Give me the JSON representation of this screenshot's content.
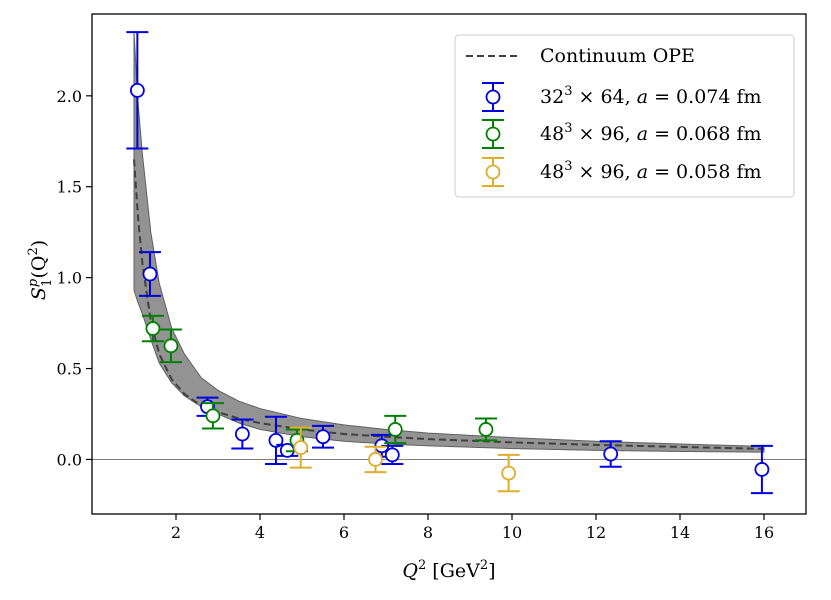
{
  "chart_data": {
    "type": "scatter",
    "xlabel": "Q² [GeV²]",
    "ylabel": "S₁ᵖ(Q²)",
    "xlim": [
      0,
      17
    ],
    "ylim": [
      -0.3,
      2.45
    ],
    "xticks": [
      2,
      4,
      6,
      8,
      10,
      12,
      14,
      16
    ],
    "yticks": [
      0.0,
      0.5,
      1.0,
      1.5,
      2.0
    ],
    "ytick_labels": [
      "0.0",
      "0.5",
      "1.0",
      "1.5",
      "2.0"
    ],
    "grid": false,
    "zero_line": true,
    "legend_position": "top-right",
    "band": {
      "name": "Continuum OPE",
      "color": "#808080",
      "x": [
        1.0,
        1.1,
        1.2,
        1.4,
        1.6,
        1.9,
        2.2,
        2.6,
        3.0,
        3.5,
        4.0,
        5.0,
        6.0,
        7.0,
        8.0,
        10.0,
        12.0,
        14.0,
        16.0
      ],
      "central": [
        1.65,
        1.32,
        1.08,
        0.76,
        0.58,
        0.44,
        0.36,
        0.295,
        0.26,
        0.225,
        0.2,
        0.165,
        0.14,
        0.125,
        0.112,
        0.094,
        0.08,
        0.069,
        0.058
      ],
      "upper": [
        2.35,
        1.95,
        1.68,
        1.25,
        0.97,
        0.72,
        0.58,
        0.45,
        0.38,
        0.32,
        0.28,
        0.225,
        0.19,
        0.165,
        0.145,
        0.12,
        0.1,
        0.085,
        0.072
      ],
      "lower": [
        0.93,
        0.86,
        0.8,
        0.66,
        0.53,
        0.42,
        0.35,
        0.29,
        0.25,
        0.2,
        0.165,
        0.125,
        0.1,
        0.085,
        0.075,
        0.06,
        0.05,
        0.044,
        0.04
      ]
    },
    "series": [
      {
        "name": "32³ × 64, a = 0.074 fm",
        "color": "#0000e0",
        "points": [
          {
            "x": 1.08,
            "y": 2.03,
            "err": 0.32
          },
          {
            "x": 1.38,
            "y": 1.02,
            "err": 0.12
          },
          {
            "x": 2.75,
            "y": 0.29,
            "err": 0.05
          },
          {
            "x": 3.58,
            "y": 0.14,
            "err": 0.08
          },
          {
            "x": 4.38,
            "y": 0.105,
            "err": 0.13
          },
          {
            "x": 4.65,
            "y": 0.05,
            "err": 0.03
          },
          {
            "x": 5.5,
            "y": 0.125,
            "err": 0.06
          },
          {
            "x": 6.9,
            "y": 0.075,
            "err": 0.06
          },
          {
            "x": 7.15,
            "y": 0.025,
            "err": 0.05
          },
          {
            "x": 12.35,
            "y": 0.03,
            "err": 0.07
          },
          {
            "x": 15.95,
            "y": -0.055,
            "err": 0.13
          }
        ]
      },
      {
        "name": "48³ × 96, a = 0.068 fm",
        "color": "#008000",
        "points": [
          {
            "x": 1.45,
            "y": 0.72,
            "err": 0.07
          },
          {
            "x": 1.88,
            "y": 0.625,
            "err": 0.09
          },
          {
            "x": 2.88,
            "y": 0.24,
            "err": 0.07
          },
          {
            "x": 4.88,
            "y": 0.105,
            "err": 0.06
          },
          {
            "x": 7.22,
            "y": 0.165,
            "err": 0.075
          },
          {
            "x": 9.38,
            "y": 0.165,
            "err": 0.06
          }
        ]
      },
      {
        "name": "48³ × 96, a = 0.058 fm",
        "color": "#e0ac2c",
        "points": [
          {
            "x": 4.97,
            "y": 0.065,
            "err": 0.11
          },
          {
            "x": 6.75,
            "y": 0.0,
            "err": 0.07
          },
          {
            "x": 9.92,
            "y": -0.075,
            "err": 0.1
          }
        ]
      }
    ]
  },
  "legend": {
    "items": [
      {
        "key": "ope",
        "latex_plain": "Continuum OPE"
      },
      {
        "key": "s0",
        "base": "32",
        "sup": "3",
        "tail": " × 64, ",
        "avar": "a",
        "aval": " = 0.074 fm"
      },
      {
        "key": "s1",
        "base": "48",
        "sup": "3",
        "tail": " × 96, ",
        "avar": "a",
        "aval": " = 0.068 fm"
      },
      {
        "key": "s2",
        "base": "48",
        "sup": "3",
        "tail": " × 96, ",
        "avar": "a",
        "aval": " = 0.058 fm"
      }
    ]
  },
  "axis_titles": {
    "x_main": "Q",
    "x_sup": "2",
    "x_unit": " [GeV",
    "x_unit_sup": "2",
    "x_close": "]",
    "y_main": "S",
    "y_sup": "p",
    "y_sub": "1",
    "y_paren": "(Q",
    "y_paren_sup": "2",
    "y_close": ")"
  }
}
